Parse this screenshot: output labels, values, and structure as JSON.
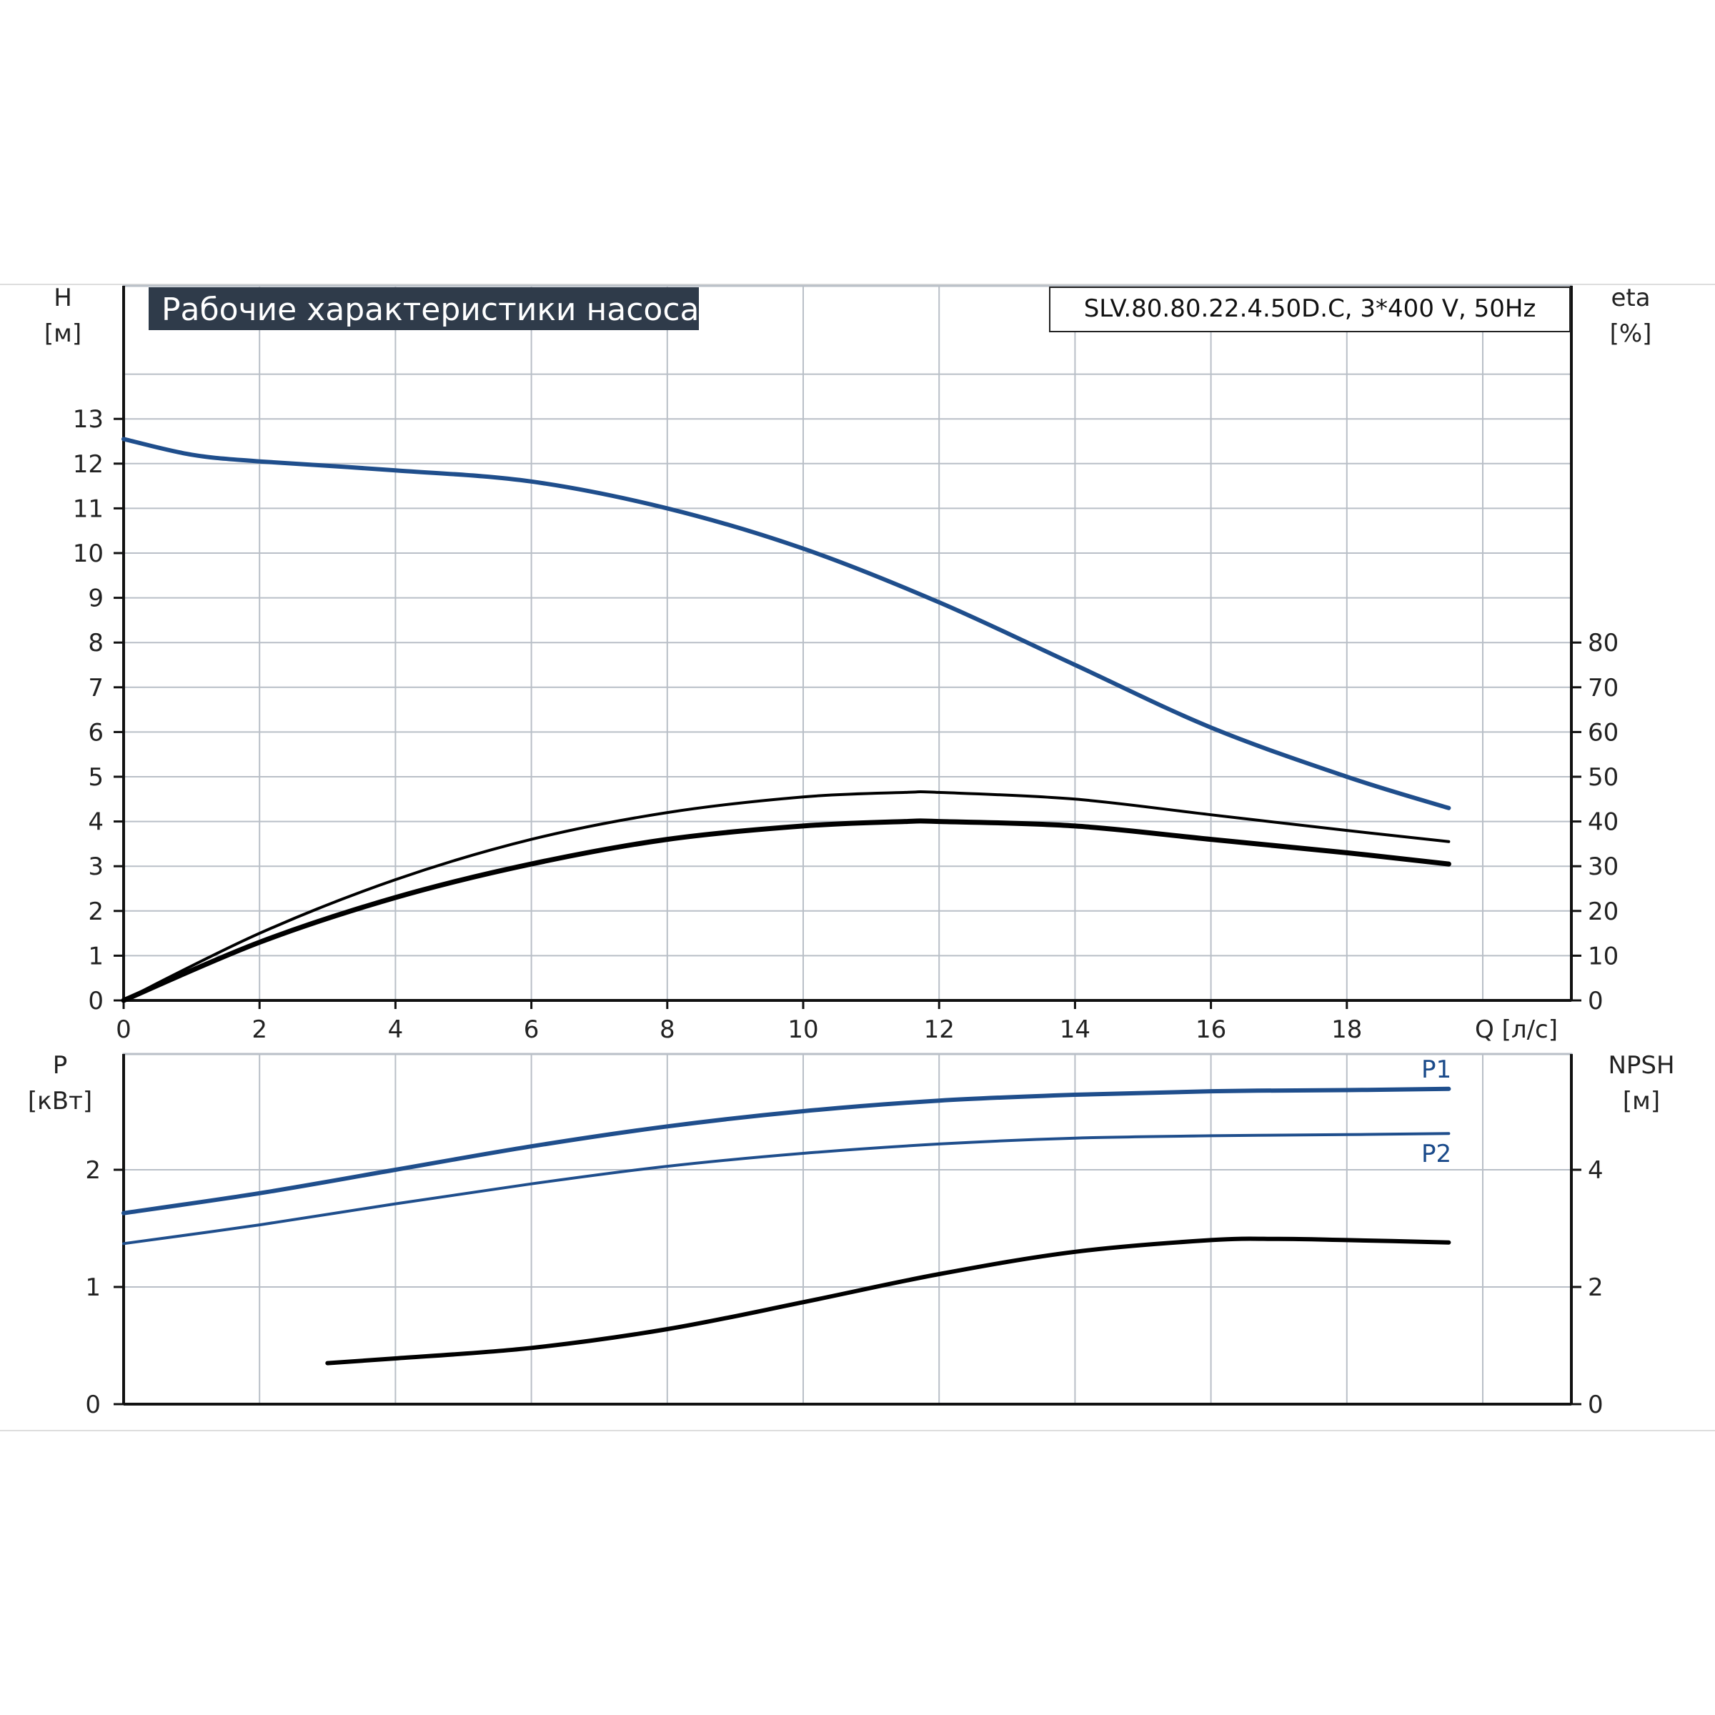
{
  "title": "Рабочие характеристики насоса",
  "model": "SLV.80.80.22.4.50D.C, 3*400 V, 50Hz",
  "colors": {
    "blue": "#1f4e8c",
    "black": "#000000",
    "grid": "#b9bfc7",
    "title_bg": "#2f3b4a"
  },
  "chart_data": [
    {
      "type": "line",
      "panel": "performance",
      "xlabel": "Q [л/с]",
      "ylabel_left": "H",
      "ylabel_left_unit": "[м]",
      "ylabel_right": "eta",
      "ylabel_right_unit": "[%]",
      "xlim": [
        0,
        20.5
      ],
      "ylim_left": [
        0,
        13
      ],
      "ylim_right": [
        0,
        80
      ],
      "x_ticks": [
        "0",
        "2",
        "4",
        "6",
        "8",
        "10",
        "12",
        "14",
        "16",
        "18"
      ],
      "y_ticks_left": [
        "0",
        "1",
        "2",
        "3",
        "4",
        "5",
        "6",
        "7",
        "8",
        "9",
        "10",
        "11",
        "12",
        "13"
      ],
      "y_ticks_right": [
        "0",
        "10",
        "20",
        "30",
        "40",
        "50",
        "60",
        "70",
        "80"
      ],
      "grid": true,
      "series": [
        {
          "key": "H",
          "axis": "left",
          "color": "#1f4e8c",
          "x": [
            0,
            1,
            2,
            4,
            6,
            8,
            10,
            12,
            14,
            16,
            18,
            19.5
          ],
          "y": [
            12.55,
            12.2,
            12.05,
            11.85,
            11.6,
            11.0,
            10.1,
            8.9,
            7.5,
            6.1,
            5.0,
            4.3
          ]
        },
        {
          "key": "eta",
          "axis": "right",
          "color": "#000000",
          "x": [
            0,
            2,
            4,
            6,
            8,
            10,
            11.5,
            12,
            14,
            16,
            18,
            19.5
          ],
          "y": [
            0,
            15,
            27,
            36,
            42,
            45.5,
            46.5,
            46.5,
            45,
            41.5,
            38,
            35.5
          ]
        },
        {
          "key": "eta2",
          "axis": "right",
          "color": "#000000",
          "x": [
            0,
            2,
            4,
            6,
            8,
            10,
            11.5,
            12,
            14,
            16,
            18,
            19.5
          ],
          "y": [
            0,
            13,
            23,
            30.5,
            36,
            39,
            40,
            40,
            39,
            36,
            33,
            30.5
          ]
        }
      ]
    },
    {
      "type": "line",
      "panel": "power",
      "xlim": [
        0,
        20.5
      ],
      "ylabel_left": "P",
      "ylabel_left_unit": "[кВт]",
      "ylabel_right": "NPSH",
      "ylabel_right_unit": "[м]",
      "ylim_left": [
        0,
        2.5
      ],
      "ylim_right": [
        0,
        5
      ],
      "y_ticks_left": [
        "0",
        "1",
        "2"
      ],
      "y_ticks_right": [
        "0",
        "2",
        "4"
      ],
      "grid": true,
      "series": [
        {
          "key": "P1",
          "name": "P1",
          "axis": "left",
          "color": "#1f4e8c",
          "x": [
            0,
            2,
            4,
            6,
            8,
            10,
            12,
            14,
            16,
            18,
            19.5
          ],
          "y": [
            1.63,
            1.8,
            2.0,
            2.2,
            2.37,
            2.5,
            2.59,
            2.64,
            2.67,
            2.68,
            2.69
          ]
        },
        {
          "key": "P2",
          "name": "P2",
          "axis": "left",
          "color": "#1f4e8c",
          "x": [
            0,
            2,
            4,
            6,
            8,
            10,
            12,
            14,
            16,
            18,
            19.5
          ],
          "y": [
            1.37,
            1.53,
            1.71,
            1.88,
            2.03,
            2.14,
            2.22,
            2.27,
            2.29,
            2.3,
            2.31
          ]
        },
        {
          "key": "NPSH",
          "axis": "right",
          "color": "#000000",
          "x": [
            3,
            4,
            6,
            8,
            10,
            12,
            14,
            16,
            17,
            18,
            19.5
          ],
          "y": [
            0.7,
            0.78,
            0.96,
            1.28,
            1.74,
            2.22,
            2.6,
            2.8,
            2.82,
            2.8,
            2.76
          ]
        }
      ]
    }
  ]
}
